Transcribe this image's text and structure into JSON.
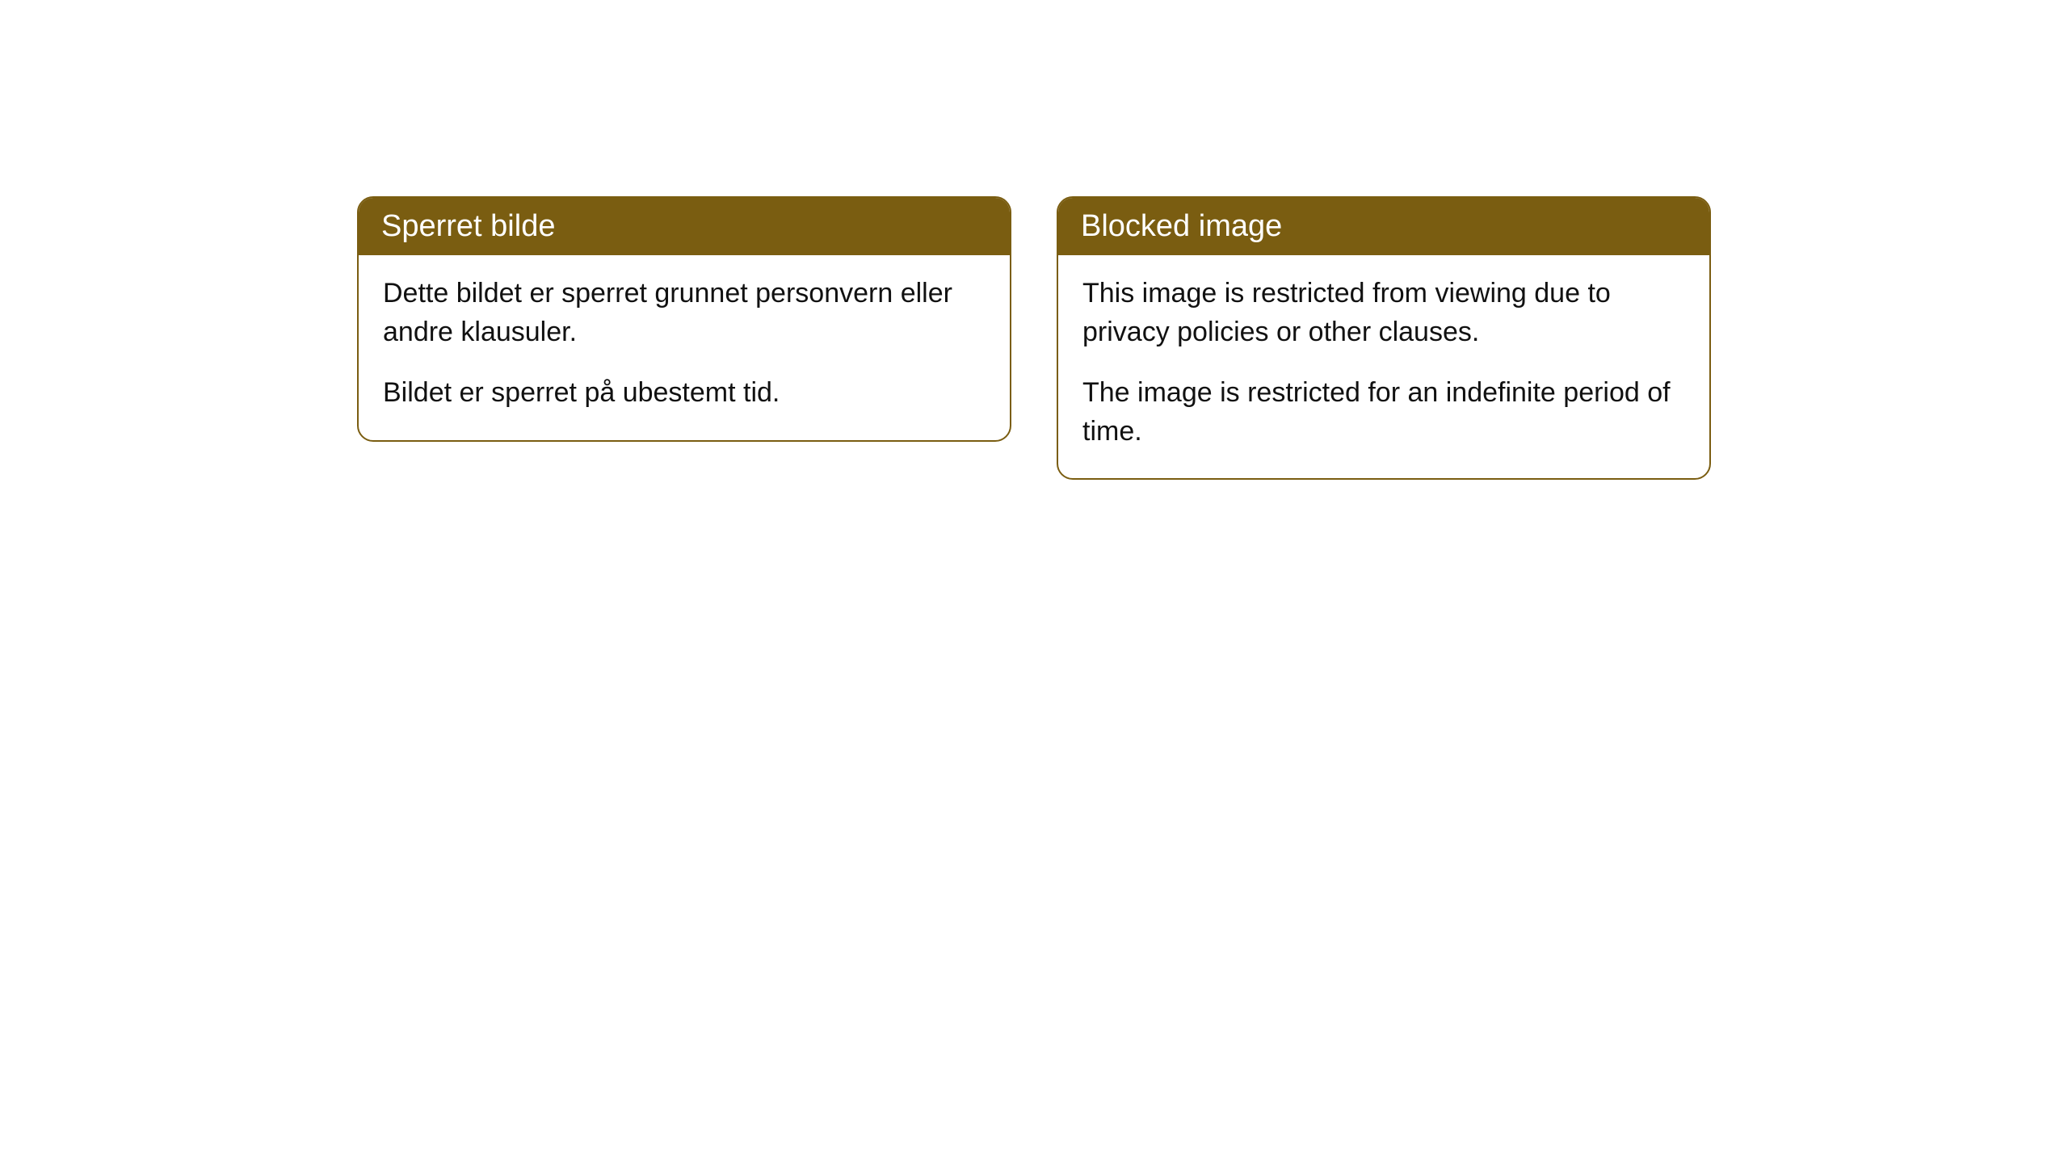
{
  "cards": [
    {
      "title": "Sperret bilde",
      "paragraph1": "Dette bildet er sperret grunnet personvern eller andre klausuler.",
      "paragraph2": "Bildet er sperret på ubestemt tid."
    },
    {
      "title": "Blocked image",
      "paragraph1": "This image is restricted from viewing due to privacy policies or other clauses.",
      "paragraph2": "The image is restricted for an indefinite period of time."
    }
  ],
  "style": {
    "header_background": "#7a5d11",
    "header_text_color": "#ffffff",
    "border_color": "#7a5d11",
    "body_background": "#ffffff",
    "body_text_color": "#111111",
    "border_radius": 20,
    "title_fontsize": 38,
    "body_fontsize": 34
  }
}
